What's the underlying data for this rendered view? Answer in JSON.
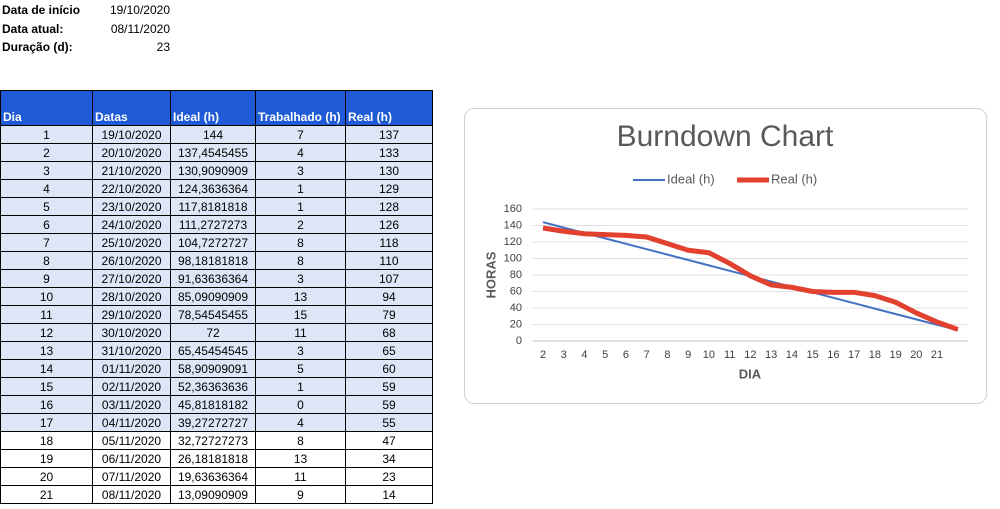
{
  "info": [
    {
      "label": "Data de início",
      "value": "19/10/2020"
    },
    {
      "label": "Data atual:",
      "value": "08/11/2020"
    },
    {
      "label": "Duração (d):",
      "value": "23"
    }
  ],
  "table": {
    "header": [
      "Dia",
      "Datas",
      "Ideal (h)",
      "Trabalhado (h)",
      "Real (h)"
    ],
    "rows": [
      [
        "1",
        "19/10/2020",
        "144",
        "7",
        "137"
      ],
      [
        "2",
        "20/10/2020",
        "137,4545455",
        "4",
        "133"
      ],
      [
        "3",
        "21/10/2020",
        "130,9090909",
        "3",
        "130"
      ],
      [
        "4",
        "22/10/2020",
        "124,3636364",
        "1",
        "129"
      ],
      [
        "5",
        "23/10/2020",
        "117,8181818",
        "1",
        "128"
      ],
      [
        "6",
        "24/10/2020",
        "111,2727273",
        "2",
        "126"
      ],
      [
        "7",
        "25/10/2020",
        "104,7272727",
        "8",
        "118"
      ],
      [
        "8",
        "26/10/2020",
        "98,18181818",
        "8",
        "110"
      ],
      [
        "9",
        "27/10/2020",
        "91,63636364",
        "3",
        "107"
      ],
      [
        "10",
        "28/10/2020",
        "85,09090909",
        "13",
        "94"
      ],
      [
        "11",
        "29/10/2020",
        "78,54545455",
        "15",
        "79"
      ],
      [
        "12",
        "30/10/2020",
        "72",
        "11",
        "68"
      ],
      [
        "13",
        "31/10/2020",
        "65,45454545",
        "3",
        "65"
      ],
      [
        "14",
        "01/11/2020",
        "58,90909091",
        "5",
        "60"
      ],
      [
        "15",
        "02/11/2020",
        "52,36363636",
        "1",
        "59"
      ],
      [
        "16",
        "03/11/2020",
        "45,81818182",
        "0",
        "59"
      ],
      [
        "17",
        "04/11/2020",
        "39,27272727",
        "4",
        "55"
      ],
      [
        "18",
        "05/11/2020",
        "32,72727273",
        "8",
        "47"
      ],
      [
        "19",
        "06/11/2020",
        "26,18181818",
        "13",
        "34"
      ],
      [
        "20",
        "07/11/2020",
        "19,63636364",
        "11",
        "23"
      ],
      [
        "21",
        "08/11/2020",
        "13,09090909",
        "9",
        "14"
      ]
    ]
  },
  "chart_data": {
    "type": "line",
    "title": "Burndown Chart",
    "xlabel": "DIA",
    "ylabel": "HORAS",
    "categories": [
      2,
      3,
      4,
      5,
      6,
      7,
      8,
      9,
      10,
      11,
      12,
      13,
      14,
      15,
      16,
      17,
      18,
      19,
      20,
      21,
      null
    ],
    "series": [
      {
        "name": "Ideal (h)",
        "color": "#4472c4",
        "values": [
          144,
          137.4545455,
          130.9090909,
          124.3636364,
          117.8181818,
          111.2727273,
          104.7272727,
          98.18181818,
          91.63636364,
          85.09090909,
          78.54545455,
          72,
          65.45454545,
          58.90909091,
          52.36363636,
          45.81818182,
          39.27272727,
          32.72727273,
          26.18181818,
          19.63636364,
          13.09090909
        ]
      },
      {
        "name": "Real (h)",
        "color": "#e2412f",
        "values": [
          137,
          133,
          130,
          129,
          128,
          126,
          118,
          110,
          107,
          94,
          79,
          68,
          65,
          60,
          59,
          59,
          55,
          47,
          34,
          23,
          14
        ]
      }
    ],
    "ylim": [
      0,
      160
    ],
    "yticks": [
      0,
      20,
      40,
      60,
      80,
      100,
      120,
      140,
      160
    ],
    "grid": true,
    "legend": "top"
  }
}
